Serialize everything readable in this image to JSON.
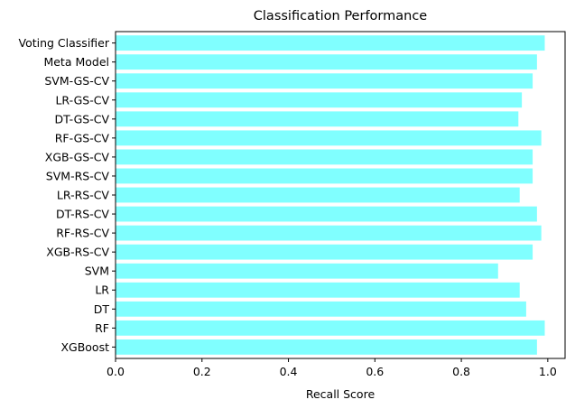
{
  "chart_data": {
    "type": "bar",
    "orientation": "horizontal",
    "title": "Classification Performance",
    "xlabel": "Recall Score",
    "ylabel": "",
    "xlim": [
      0,
      1.04
    ],
    "x_ticks": [
      0.0,
      0.2,
      0.4,
      0.6,
      0.8,
      1.0
    ],
    "x_tick_labels": [
      "0.0",
      "0.2",
      "0.4",
      "0.6",
      "0.8",
      "1.0"
    ],
    "grid": false,
    "bar_color": "#80ffff",
    "categories": [
      "XGBoost",
      "RF",
      "DT",
      "LR",
      "SVM",
      "XGB-RS-CV",
      "RF-RS-CV",
      "DT-RS-CV",
      "LR-RS-CV",
      "SVM-RS-CV",
      "XGB-GS-CV",
      "RF-GS-CV",
      "DT-GS-CV",
      "LR-GS-CV",
      "SVM-GS-CV",
      "Meta Model",
      "Voting Classifier"
    ],
    "values": [
      0.975,
      0.993,
      0.95,
      0.935,
      0.885,
      0.965,
      0.985,
      0.975,
      0.935,
      0.965,
      0.965,
      0.985,
      0.932,
      0.94,
      0.965,
      0.975,
      0.993
    ]
  }
}
